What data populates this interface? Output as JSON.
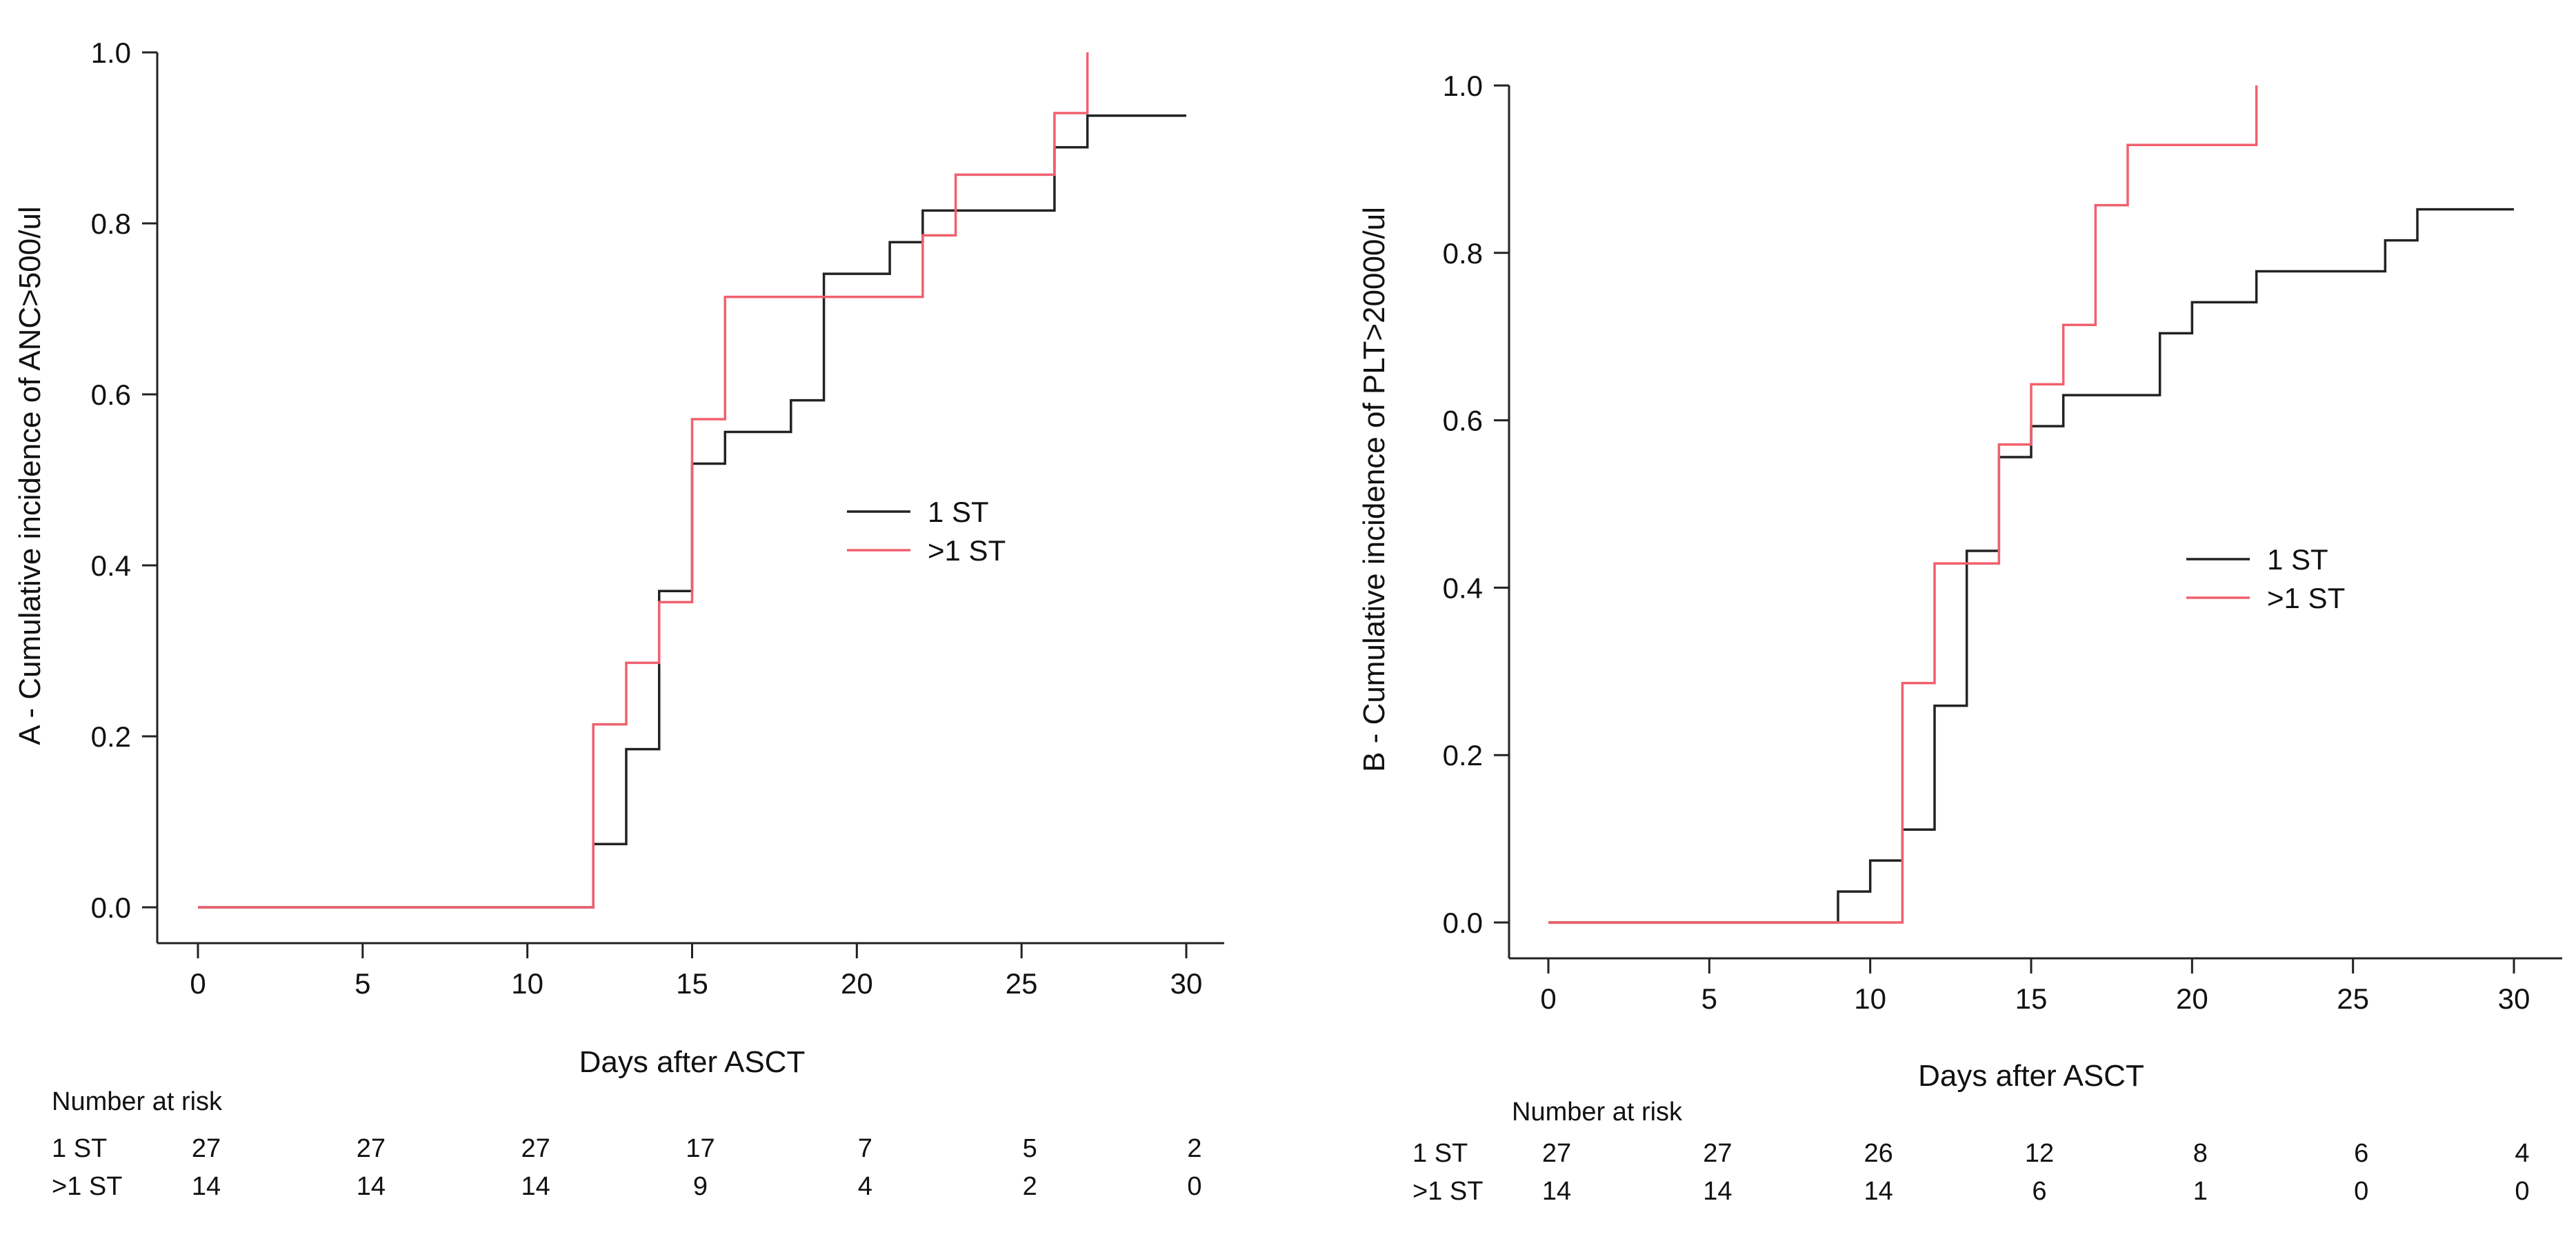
{
  "chart_data": [
    {
      "type": "line",
      "step": true,
      "title": "",
      "xlabel": "Days after ASCT",
      "ylabel": "A  -  Cumulative incidence of ANC>500/ul",
      "xlim": [
        0,
        30
      ],
      "ylim": [
        0,
        1
      ],
      "xticks": [
        "0",
        "5",
        "10",
        "15",
        "20",
        "25",
        "30"
      ],
      "yticks": [
        "0.0",
        "0.2",
        "0.4",
        "0.6",
        "0.8",
        "1.0"
      ],
      "legend_position": "center-right",
      "series": [
        {
          "name": " 1 ST",
          "color": "#222222",
          "x": [
            0,
            12,
            13,
            14,
            15,
            16,
            18,
            19,
            21,
            22,
            26,
            27,
            30
          ],
          "y": [
            0,
            0.074,
            0.185,
            0.37,
            0.519,
            0.556,
            0.593,
            0.741,
            0.778,
            0.815,
            0.889,
            0.926,
            0.926
          ]
        },
        {
          "name": ">1 ST",
          "color": "#f0606e",
          "x": [
            0,
            12,
            13,
            14,
            15,
            16,
            22,
            23,
            26,
            27
          ],
          "y": [
            0,
            0.214,
            0.286,
            0.357,
            0.571,
            0.714,
            0.786,
            0.857,
            0.929,
            1.0
          ]
        }
      ],
      "risk_table": {
        "title": "Number at risk",
        "rows": [
          {
            "label": "1 ST",
            "values": [
              "27",
              "27",
              "27",
              "17",
              "7",
              "5",
              "2"
            ]
          },
          {
            "label": ">1 ST",
            "values": [
              "14",
              "14",
              "14",
              "9",
              "4",
              "2",
              "0"
            ]
          }
        ]
      }
    },
    {
      "type": "line",
      "step": true,
      "title": "",
      "xlabel": "Days after ASCT",
      "ylabel": "B - Cumulative incidence of PLT>20000/ul",
      "xlim": [
        0,
        30
      ],
      "ylim": [
        0,
        1
      ],
      "xticks": [
        "0",
        "5",
        "10",
        "15",
        "20",
        "25",
        "30"
      ],
      "yticks": [
        "0.0",
        "0.2",
        "0.4",
        "0.6",
        "0.8",
        "1.0"
      ],
      "legend_position": "center-right",
      "series": [
        {
          "name": "1 ST",
          "color": "#222222",
          "x": [
            0,
            9,
            10,
            11,
            12,
            13,
            14,
            15,
            16,
            19,
            20,
            22,
            26,
            27,
            30
          ],
          "y": [
            0,
            0.037,
            0.074,
            0.111,
            0.259,
            0.444,
            0.556,
            0.593,
            0.63,
            0.704,
            0.741,
            0.778,
            0.815,
            0.852,
            0.852
          ]
        },
        {
          "name": ">1 ST",
          "color": "#f0606e",
          "x": [
            0,
            11,
            12,
            14,
            15,
            16,
            17,
            18,
            22
          ],
          "y": [
            0,
            0.286,
            0.429,
            0.571,
            0.643,
            0.714,
            0.857,
            0.929,
            1.0
          ]
        }
      ],
      "risk_table": {
        "title": "Number at risk",
        "rows": [
          {
            "label": "1 ST",
            "values": [
              "27",
              "27",
              "26",
              "12",
              "8",
              "6",
              "4"
            ]
          },
          {
            "label": ">1 ST",
            "values": [
              "14",
              "14",
              "14",
              "6",
              "1",
              "0",
              "0"
            ]
          }
        ]
      }
    }
  ]
}
